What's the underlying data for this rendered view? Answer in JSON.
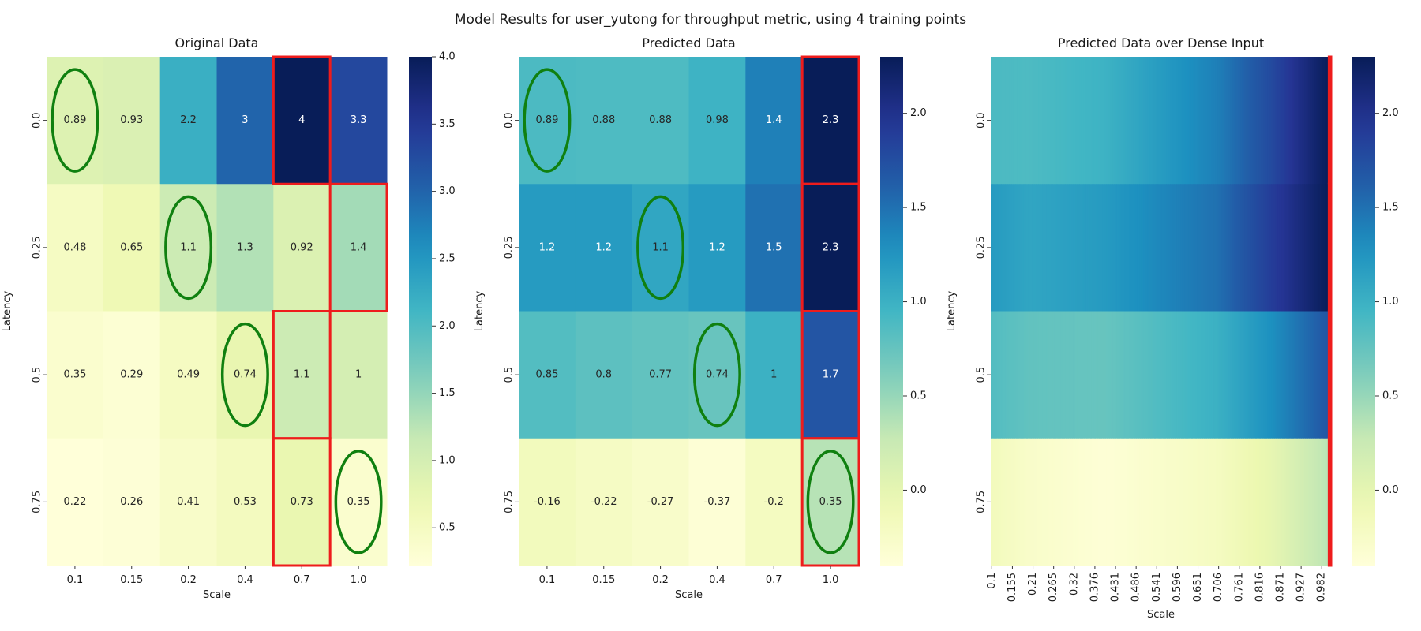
{
  "figure": {
    "title": "Model Results for user_yutong for throughput metric, using 4 training points"
  },
  "chart_data": [
    {
      "type": "heatmap",
      "title": "Original Data",
      "xlabel": "Scale",
      "ylabel": "Latency",
      "x_categories": [
        "0.1",
        "0.15",
        "0.2",
        "0.4",
        "0.7",
        "1.0"
      ],
      "y_categories": [
        "0.0",
        "0.25",
        "0.5",
        "0.75"
      ],
      "values": [
        [
          0.89,
          0.93,
          2.2,
          3,
          4,
          3.3
        ],
        [
          0.48,
          0.65,
          1.1,
          1.3,
          0.92,
          1.4
        ],
        [
          0.35,
          0.29,
          0.49,
          0.74,
          1.1,
          1
        ],
        [
          0.22,
          0.26,
          0.41,
          0.53,
          0.73,
          0.35
        ]
      ],
      "cell_labels": [
        [
          "0.89",
          "0.93",
          "2.2",
          "3",
          "4",
          "3.3"
        ],
        [
          "0.48",
          "0.65",
          "1.1",
          "1.3",
          "0.92",
          "1.4"
        ],
        [
          "0.35",
          "0.29",
          "0.49",
          "0.74",
          "1.1",
          "1"
        ],
        [
          "0.22",
          "0.26",
          "0.41",
          "0.53",
          "0.73",
          "0.35"
        ]
      ],
      "vmin": 0.22,
      "vmax": 4.0,
      "colorbar_ticks": [
        "0.5",
        "1.0",
        "1.5",
        "2.0",
        "2.5",
        "3.0",
        "3.5",
        "4.0"
      ],
      "colormap": "YlGnBu",
      "highlight_boxes": [
        [
          0,
          4
        ],
        [
          1,
          5
        ],
        [
          2,
          4
        ],
        [
          3,
          4
        ]
      ],
      "training_points": [
        [
          0,
          0
        ],
        [
          1,
          2
        ],
        [
          2,
          3
        ],
        [
          3,
          5
        ]
      ],
      "highlight_color": "#ee1c1c",
      "training_color": "#108010"
    },
    {
      "type": "heatmap",
      "title": "Predicted Data",
      "xlabel": "Scale",
      "ylabel": "Latency",
      "x_categories": [
        "0.1",
        "0.15",
        "0.2",
        "0.4",
        "0.7",
        "1.0"
      ],
      "y_categories": [
        "0.0",
        "0.25",
        "0.5",
        "0.75"
      ],
      "values": [
        [
          0.89,
          0.88,
          0.88,
          0.98,
          1.4,
          2.3
        ],
        [
          1.2,
          1.2,
          1.1,
          1.2,
          1.5,
          2.3
        ],
        [
          0.85,
          0.8,
          0.77,
          0.74,
          1,
          1.7
        ],
        [
          -0.16,
          -0.22,
          -0.27,
          -0.37,
          -0.2,
          0.35
        ]
      ],
      "cell_labels": [
        [
          "0.89",
          "0.88",
          "0.88",
          "0.98",
          "1.4",
          "2.3"
        ],
        [
          "1.2",
          "1.2",
          "1.1",
          "1.2",
          "1.5",
          "2.3"
        ],
        [
          "0.85",
          "0.8",
          "0.77",
          "0.74",
          "1",
          "1.7"
        ],
        [
          "-0.16",
          "-0.22",
          "-0.27",
          "-0.37",
          "-0.2",
          "0.35"
        ]
      ],
      "vmin": -0.4,
      "vmax": 2.3,
      "colorbar_ticks": [
        "0.0",
        "0.5",
        "1.0",
        "1.5",
        "2.0"
      ],
      "colormap": "YlGnBu",
      "highlight_boxes": [
        [
          0,
          5
        ],
        [
          1,
          5
        ],
        [
          2,
          5
        ],
        [
          3,
          5
        ]
      ],
      "training_points": [
        [
          0,
          0
        ],
        [
          1,
          2
        ],
        [
          2,
          3
        ],
        [
          3,
          5
        ]
      ],
      "highlight_color": "#ee1c1c",
      "training_color": "#108010"
    },
    {
      "type": "heatmap",
      "title": "Predicted Data over Dense Input",
      "xlabel": "Scale",
      "ylabel": "Latency",
      "x_tick_labels": [
        "0.1",
        "0.155",
        "0.21",
        "0.265",
        "0.32",
        "0.376",
        "0.431",
        "0.486",
        "0.541",
        "0.596",
        "0.651",
        "0.706",
        "0.761",
        "0.816",
        "0.871",
        "0.927",
        "0.982"
      ],
      "x_range": [
        0.1,
        1.0
      ],
      "y_categories": [
        "0.0",
        "0.25",
        "0.5",
        "0.75"
      ],
      "row_profiles": [
        [
          [
            0.1,
            0.89
          ],
          [
            0.2,
            0.88
          ],
          [
            0.4,
            0.98
          ],
          [
            0.7,
            1.4
          ],
          [
            0.85,
            1.8
          ],
          [
            1.0,
            2.3
          ]
        ],
        [
          [
            0.1,
            1.2
          ],
          [
            0.2,
            1.1
          ],
          [
            0.4,
            1.2
          ],
          [
            0.7,
            1.5
          ],
          [
            0.85,
            1.9
          ],
          [
            1.0,
            2.3
          ]
        ],
        [
          [
            0.1,
            0.85
          ],
          [
            0.2,
            0.77
          ],
          [
            0.4,
            0.74
          ],
          [
            0.7,
            1.0
          ],
          [
            0.85,
            1.3
          ],
          [
            1.0,
            1.7
          ]
        ],
        [
          [
            0.1,
            -0.16
          ],
          [
            0.2,
            -0.27
          ],
          [
            0.4,
            -0.37
          ],
          [
            0.7,
            -0.2
          ],
          [
            0.85,
            0.0
          ],
          [
            1.0,
            0.35
          ]
        ]
      ],
      "vmin": -0.4,
      "vmax": 2.3,
      "colorbar_ticks": [
        "0.0",
        "0.5",
        "1.0",
        "1.5",
        "2.0"
      ],
      "colormap": "YlGnBu",
      "highlight_column_x": 1.0,
      "highlight_color": "#ee1c1c"
    }
  ]
}
